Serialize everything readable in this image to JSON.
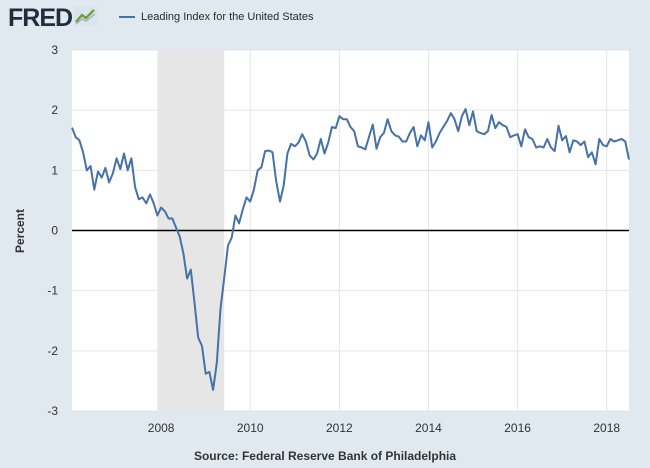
{
  "header": {
    "logo_text": "FRED",
    "logo_icon": "trend-line-icon",
    "legend_label": "Leading Index for the United States"
  },
  "colors": {
    "background": "#e1e9f0",
    "plot_background": "#ffffff",
    "series_line": "#4572a7",
    "recession_shade": "#e6e6e6",
    "grid": "#e5e5e5",
    "zero_line": "#000000"
  },
  "source_text": "Source: Federal Reserve Bank of Philadelphia",
  "chart_data": {
    "type": "line",
    "title": "",
    "xlabel": "",
    "ylabel": "Percent",
    "xlim": [
      2006.0,
      2018.5
    ],
    "ylim": [
      -3,
      3
    ],
    "y_ticks": [
      3,
      2,
      1,
      0,
      -1,
      -2,
      -3
    ],
    "x_ticks": [
      2008,
      2010,
      2012,
      2014,
      2016,
      2018
    ],
    "grid": true,
    "legend_position": "top",
    "recession_band": [
      2007.917,
      2009.417
    ],
    "zero_line": 0,
    "series": [
      {
        "name": "Leading Index for the United States",
        "color": "#4572a7",
        "points": [
          [
            2006.0,
            1.71
          ],
          [
            2006.083,
            1.55
          ],
          [
            2006.167,
            1.5
          ],
          [
            2006.25,
            1.3
          ],
          [
            2006.333,
            1.0
          ],
          [
            2006.417,
            1.07
          ],
          [
            2006.5,
            0.68
          ],
          [
            2006.583,
            0.98
          ],
          [
            2006.667,
            0.88
          ],
          [
            2006.75,
            1.04
          ],
          [
            2006.833,
            0.8
          ],
          [
            2006.917,
            0.95
          ],
          [
            2007.0,
            1.2
          ],
          [
            2007.083,
            1.02
          ],
          [
            2007.167,
            1.28
          ],
          [
            2007.25,
            1.0
          ],
          [
            2007.333,
            1.2
          ],
          [
            2007.417,
            0.72
          ],
          [
            2007.5,
            0.52
          ],
          [
            2007.583,
            0.55
          ],
          [
            2007.667,
            0.45
          ],
          [
            2007.75,
            0.6
          ],
          [
            2007.833,
            0.45
          ],
          [
            2007.917,
            0.25
          ],
          [
            2008.0,
            0.38
          ],
          [
            2008.083,
            0.32
          ],
          [
            2008.167,
            0.2
          ],
          [
            2008.25,
            0.2
          ],
          [
            2008.333,
            0.05
          ],
          [
            2008.417,
            -0.1
          ],
          [
            2008.5,
            -0.38
          ],
          [
            2008.583,
            -0.8
          ],
          [
            2008.667,
            -0.65
          ],
          [
            2008.75,
            -1.2
          ],
          [
            2008.833,
            -1.78
          ],
          [
            2008.917,
            -1.92
          ],
          [
            2009.0,
            -2.38
          ],
          [
            2009.083,
            -2.35
          ],
          [
            2009.167,
            -2.65
          ],
          [
            2009.25,
            -2.2
          ],
          [
            2009.333,
            -1.3
          ],
          [
            2009.417,
            -0.78
          ],
          [
            2009.5,
            -0.25
          ],
          [
            2009.583,
            -0.12
          ],
          [
            2009.667,
            0.25
          ],
          [
            2009.75,
            0.12
          ],
          [
            2009.833,
            0.35
          ],
          [
            2009.917,
            0.55
          ],
          [
            2010.0,
            0.48
          ],
          [
            2010.083,
            0.68
          ],
          [
            2010.167,
            1.0
          ],
          [
            2010.25,
            1.05
          ],
          [
            2010.333,
            1.32
          ],
          [
            2010.417,
            1.33
          ],
          [
            2010.5,
            1.3
          ],
          [
            2010.583,
            0.82
          ],
          [
            2010.667,
            0.48
          ],
          [
            2010.75,
            0.75
          ],
          [
            2010.833,
            1.28
          ],
          [
            2010.917,
            1.44
          ],
          [
            2011.0,
            1.4
          ],
          [
            2011.083,
            1.46
          ],
          [
            2011.167,
            1.6
          ],
          [
            2011.25,
            1.48
          ],
          [
            2011.333,
            1.25
          ],
          [
            2011.417,
            1.18
          ],
          [
            2011.5,
            1.28
          ],
          [
            2011.583,
            1.52
          ],
          [
            2011.667,
            1.28
          ],
          [
            2011.75,
            1.46
          ],
          [
            2011.833,
            1.72
          ],
          [
            2011.917,
            1.7
          ],
          [
            2012.0,
            1.9
          ],
          [
            2012.083,
            1.85
          ],
          [
            2012.167,
            1.85
          ],
          [
            2012.25,
            1.72
          ],
          [
            2012.333,
            1.65
          ],
          [
            2012.417,
            1.4
          ],
          [
            2012.5,
            1.38
          ],
          [
            2012.583,
            1.35
          ],
          [
            2012.667,
            1.56
          ],
          [
            2012.75,
            1.76
          ],
          [
            2012.833,
            1.36
          ],
          [
            2012.917,
            1.55
          ],
          [
            2013.0,
            1.62
          ],
          [
            2013.083,
            1.85
          ],
          [
            2013.167,
            1.65
          ],
          [
            2013.25,
            1.58
          ],
          [
            2013.333,
            1.56
          ],
          [
            2013.417,
            1.48
          ],
          [
            2013.5,
            1.48
          ],
          [
            2013.583,
            1.62
          ],
          [
            2013.667,
            1.72
          ],
          [
            2013.75,
            1.4
          ],
          [
            2013.833,
            1.58
          ],
          [
            2013.917,
            1.5
          ],
          [
            2014.0,
            1.8
          ],
          [
            2014.083,
            1.38
          ],
          [
            2014.167,
            1.48
          ],
          [
            2014.25,
            1.62
          ],
          [
            2014.333,
            1.72
          ],
          [
            2014.417,
            1.82
          ],
          [
            2014.5,
            1.95
          ],
          [
            2014.583,
            1.85
          ],
          [
            2014.667,
            1.65
          ],
          [
            2014.75,
            1.9
          ],
          [
            2014.833,
            2.02
          ],
          [
            2014.917,
            1.75
          ],
          [
            2015.0,
            1.98
          ],
          [
            2015.083,
            1.65
          ],
          [
            2015.167,
            1.62
          ],
          [
            2015.25,
            1.6
          ],
          [
            2015.333,
            1.65
          ],
          [
            2015.417,
            1.92
          ],
          [
            2015.5,
            1.7
          ],
          [
            2015.583,
            1.8
          ],
          [
            2015.667,
            1.75
          ],
          [
            2015.75,
            1.72
          ],
          [
            2015.833,
            1.55
          ],
          [
            2015.917,
            1.58
          ],
          [
            2016.0,
            1.6
          ],
          [
            2016.083,
            1.4
          ],
          [
            2016.167,
            1.68
          ],
          [
            2016.25,
            1.55
          ],
          [
            2016.333,
            1.52
          ],
          [
            2016.417,
            1.38
          ],
          [
            2016.5,
            1.4
          ],
          [
            2016.583,
            1.38
          ],
          [
            2016.667,
            1.52
          ],
          [
            2016.75,
            1.38
          ],
          [
            2016.833,
            1.32
          ],
          [
            2016.917,
            1.74
          ],
          [
            2017.0,
            1.5
          ],
          [
            2017.083,
            1.57
          ],
          [
            2017.167,
            1.3
          ],
          [
            2017.25,
            1.5
          ],
          [
            2017.333,
            1.48
          ],
          [
            2017.417,
            1.42
          ],
          [
            2017.5,
            1.48
          ],
          [
            2017.583,
            1.22
          ],
          [
            2017.667,
            1.3
          ],
          [
            2017.75,
            1.1
          ],
          [
            2017.833,
            1.52
          ],
          [
            2017.917,
            1.42
          ],
          [
            2018.0,
            1.4
          ],
          [
            2018.083,
            1.52
          ],
          [
            2018.167,
            1.48
          ],
          [
            2018.25,
            1.5
          ],
          [
            2018.333,
            1.52
          ],
          [
            2018.417,
            1.48
          ],
          [
            2018.5,
            1.18
          ]
        ]
      }
    ]
  }
}
